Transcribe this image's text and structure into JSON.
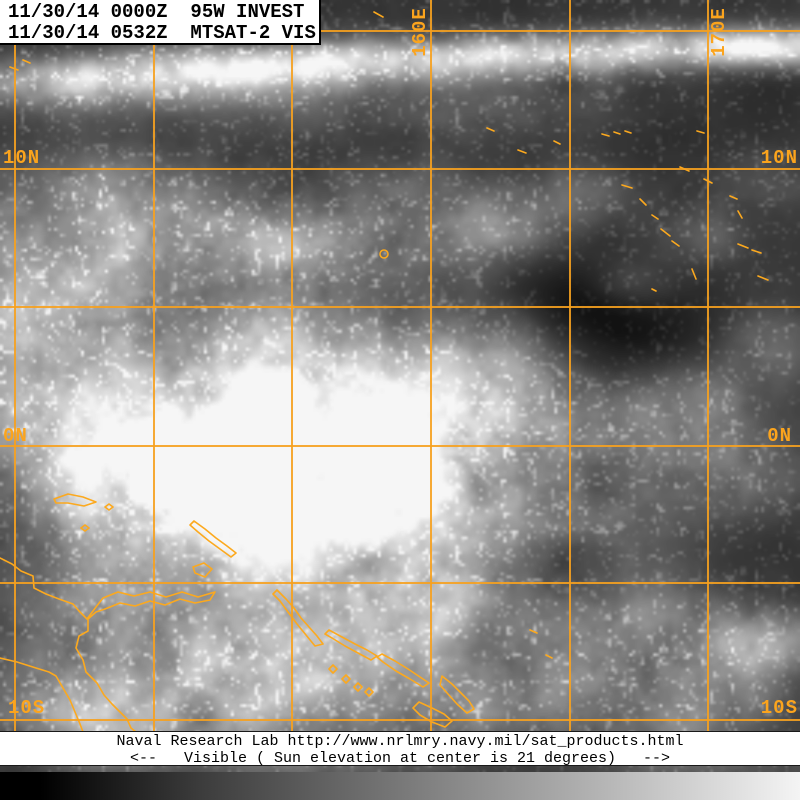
{
  "product": {
    "info_line1": "11/30/14 0000Z  95W INVEST",
    "info_line2": "11/30/14 0532Z  MTSAT-2 VIS",
    "sensor": "MTSAT-2 VIS",
    "channel": "Visible"
  },
  "grid": {
    "lat_10n": "10N",
    "lat_0n": "0N",
    "lat_10s": "10S",
    "lon_160e": "160E",
    "lon_170e": "170E"
  },
  "footer": {
    "line1": "Naval Research Lab http://www.nrlmry.navy.mil/sat_products.html",
    "line2": "<--   Visible ( Sun elevation at center is 21 degrees)   -->"
  },
  "colors": {
    "overlay_orange": "#fba41d",
    "panel_bg": "#ffffff",
    "panel_text": "#000000",
    "gradient_bar": [
      "#000000",
      "#f4f4f4"
    ]
  }
}
